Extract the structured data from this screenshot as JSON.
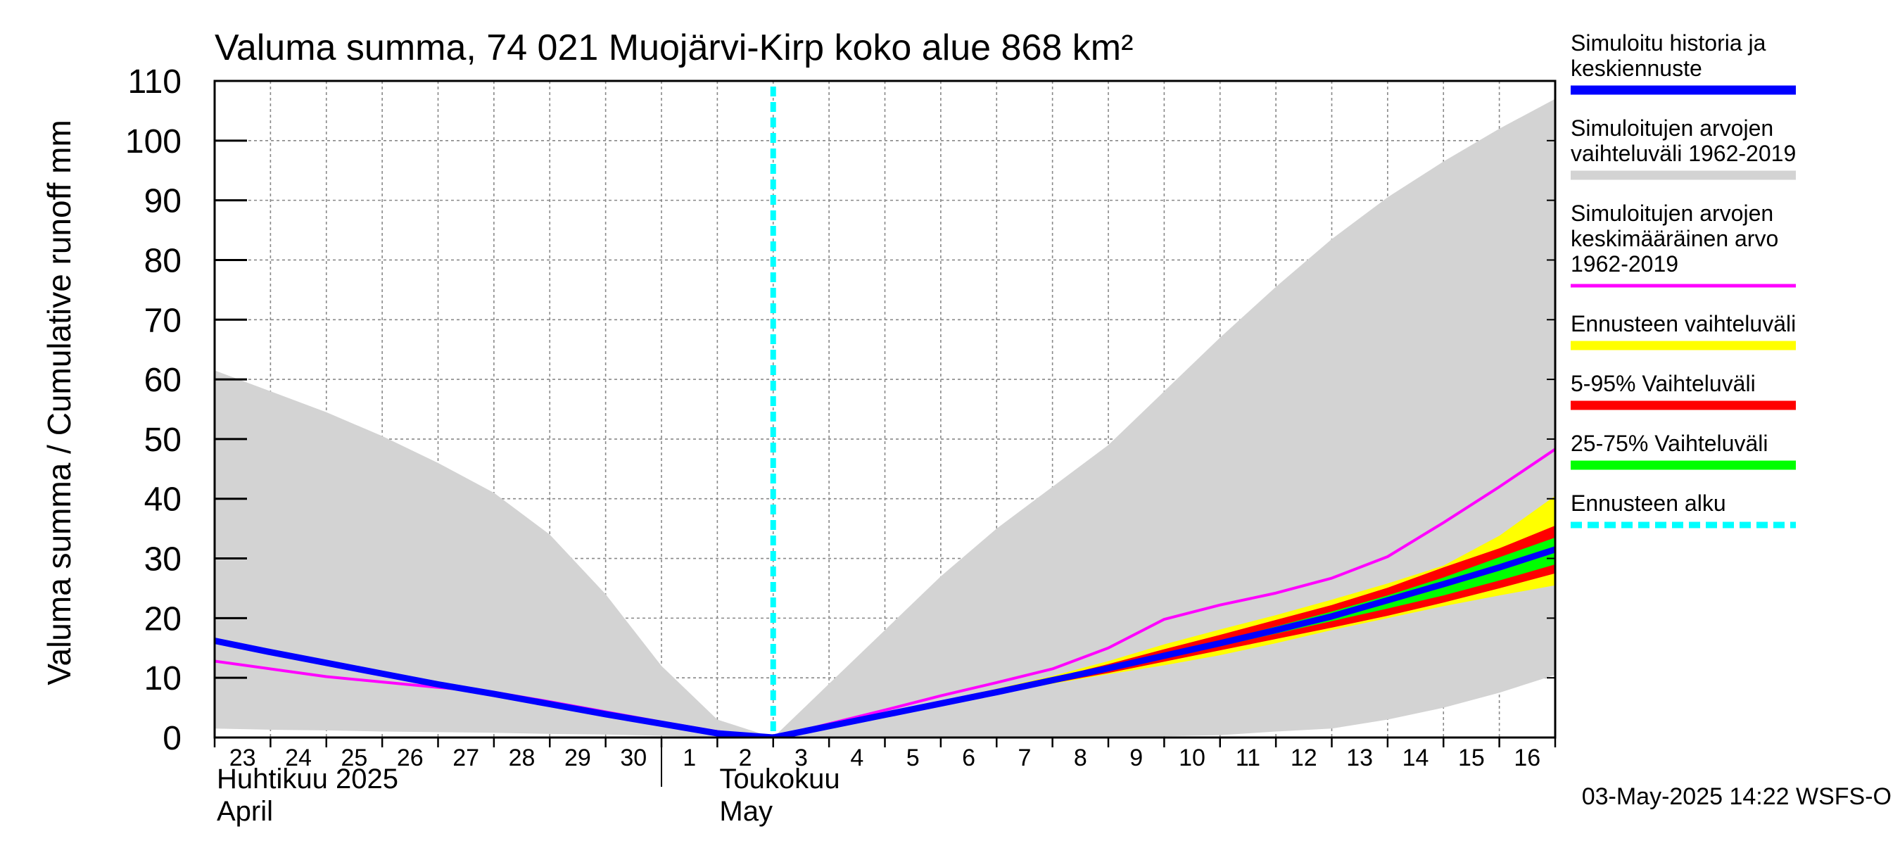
{
  "chart_data": {
    "type": "area",
    "title": "Valuma summa, 74 021 Muojärvi-Kirp koko alue 868 km²",
    "ylabel": "Valuma summa / Cumulative runoff    mm",
    "ylim": [
      0,
      110
    ],
    "yticks": [
      0,
      10,
      20,
      30,
      40,
      50,
      60,
      70,
      80,
      90,
      100,
      110
    ],
    "x_day_labels": [
      "23",
      "24",
      "25",
      "26",
      "27",
      "28",
      "29",
      "30",
      "1",
      "2",
      "3",
      "4",
      "5",
      "6",
      "7",
      "8",
      "9",
      "10",
      "11",
      "12",
      "13",
      "14",
      "15",
      "16"
    ],
    "xlim_days": [
      0,
      24
    ],
    "grid": true,
    "month_labels": [
      {
        "line1": "Huhtikuu  2025",
        "line2": "April"
      },
      {
        "line1": "Toukokuu",
        "line2": "May"
      }
    ],
    "forecast_start_day": 10,
    "footer": "03-May-2025 14:22 WSFS-O",
    "legend_position": "right",
    "legend": [
      {
        "label": "Simuloitu historia ja keskiennuste",
        "lines": [
          "Simuloitu historia ja",
          "keskiennuste"
        ],
        "color": "#0000ff"
      },
      {
        "label": "Simuloitujen arvojen vaihteluväli 1962-2019",
        "lines": [
          "Simuloitujen arvojen",
          "vaihteluväli 1962-2019"
        ],
        "color": "#d3d3d3"
      },
      {
        "label": "Simuloitujen arvojen keskimääräinen arvo 1962-2019",
        "lines": [
          "Simuloitujen arvojen",
          "keskimääräinen arvo",
          "   1962-2019"
        ],
        "color": "#ff00ff"
      },
      {
        "label": "Ennusteen vaihteluväli",
        "lines": [
          "Ennusteen vaihteluväli"
        ],
        "color": "#ffff00"
      },
      {
        "label": "5-95% Vaihteluväli",
        "lines": [
          "5-95% Vaihteluväli"
        ],
        "color": "#ff0000"
      },
      {
        "label": "25-75% Vaihteluväli",
        "lines": [
          "25-75% Vaihteluväli"
        ],
        "color": "#00ff00"
      },
      {
        "label": "Ennusteen alku",
        "lines": [
          "Ennusteen alku"
        ],
        "color": "#00ffff"
      }
    ],
    "series": [
      {
        "name": "Simuloitujen arvojen vaihteluväli 1962-2019",
        "kind": "band",
        "color": "#d3d3d3",
        "x": [
          0,
          1,
          2,
          3,
          4,
          5,
          6,
          7,
          8,
          9,
          10,
          11,
          12,
          13,
          14,
          15,
          16,
          17,
          18,
          19,
          20,
          21,
          22,
          23,
          24
        ],
        "lower": [
          1.5,
          1.3,
          1.2,
          1.0,
          0.9,
          0.8,
          0.6,
          0.5,
          0.3,
          0.1,
          0,
          0,
          0,
          0,
          0,
          0,
          0,
          0.2,
          0.4,
          1.0,
          1.5,
          3.0,
          5.0,
          7.5,
          10.5
        ],
        "upper": [
          61.5,
          58.0,
          54.5,
          50.5,
          46.0,
          41.0,
          34.0,
          24.0,
          12.0,
          3.0,
          0,
          9.0,
          18.0,
          27.0,
          35.0,
          42.0,
          49.0,
          58.0,
          67.0,
          75.5,
          83.5,
          90.5,
          96.5,
          102.0,
          107.0
        ]
      },
      {
        "name": "Ennusteen vaihteluväli",
        "kind": "band",
        "color": "#ffff00",
        "x": [
          10,
          11,
          12,
          13,
          14,
          15,
          16,
          17,
          18,
          19,
          20,
          21,
          22,
          23,
          24
        ],
        "lower": [
          0,
          1.8,
          3.6,
          5.4,
          7.3,
          9.0,
          10.6,
          12.1,
          13.8,
          15.8,
          18.0,
          20.0,
          22.0,
          23.8,
          25.5
        ],
        "upper": [
          0,
          2.0,
          4.0,
          6.1,
          8.2,
          10.3,
          12.8,
          15.6,
          18.1,
          20.5,
          23.1,
          25.8,
          28.8,
          33.8,
          40.5
        ]
      },
      {
        "name": "5-95% Vaihteluväli",
        "kind": "band",
        "color": "#ff0000",
        "x": [
          10,
          11,
          12,
          13,
          14,
          15,
          16,
          17,
          18,
          19,
          20,
          21,
          22,
          23,
          24
        ],
        "lower": [
          0,
          1.8,
          3.6,
          5.4,
          7.3,
          9.1,
          10.8,
          12.7,
          14.6,
          16.5,
          18.4,
          20.4,
          22.6,
          25.0,
          27.5
        ],
        "upper": [
          0,
          2.0,
          3.9,
          5.9,
          8.0,
          10.0,
          12.3,
          14.8,
          17.2,
          19.7,
          22.2,
          25.1,
          28.5,
          31.7,
          35.5
        ]
      },
      {
        "name": "25-75% Vaihteluväli",
        "kind": "band",
        "color": "#00ff00",
        "x": [
          10,
          11,
          12,
          13,
          14,
          15,
          16,
          17,
          18,
          19,
          20,
          21,
          22,
          23,
          24
        ],
        "lower": [
          0,
          1.9,
          3.7,
          5.6,
          7.5,
          9.4,
          11.2,
          13.2,
          15.3,
          17.4,
          19.5,
          21.6,
          23.8,
          26.3,
          29.0
        ],
        "upper": [
          0,
          1.9,
          3.8,
          5.7,
          7.7,
          9.7,
          11.7,
          13.9,
          16.2,
          18.6,
          21.1,
          23.8,
          26.8,
          30.2,
          33.5
        ]
      },
      {
        "name": "Simuloitujen arvojen keskimääräinen arvo 1962-2019",
        "kind": "line",
        "color": "#ff00ff",
        "x": [
          0,
          1,
          2,
          3,
          4,
          5,
          6,
          7,
          8,
          9,
          10,
          11,
          12,
          13,
          14,
          15,
          16,
          17,
          18,
          19,
          20,
          21,
          22,
          23,
          24
        ],
        "y": [
          12.8,
          11.5,
          10.2,
          9.3,
          8.4,
          7.6,
          6.0,
          4.3,
          2.6,
          1.0,
          0,
          2.3,
          4.6,
          7.0,
          9.2,
          11.5,
          15.0,
          19.8,
          22.2,
          24.2,
          26.7,
          30.3,
          36.0,
          42.0,
          48.3
        ]
      },
      {
        "name": "Simuloitu historia ja keskiennuste",
        "kind": "line",
        "color": "#0000ff",
        "x": [
          0,
          1,
          2,
          3,
          4,
          5,
          6,
          7,
          8,
          9,
          10,
          11,
          12,
          13,
          14,
          15,
          16,
          17,
          18,
          19,
          20,
          21,
          22,
          23,
          24
        ],
        "y": [
          16.2,
          14.3,
          12.5,
          10.7,
          8.9,
          7.3,
          5.6,
          3.9,
          2.3,
          0.7,
          0,
          1.9,
          3.8,
          5.7,
          7.6,
          9.6,
          11.6,
          13.7,
          15.8,
          18.0,
          20.3,
          23.0,
          25.7,
          28.5,
          31.5
        ]
      }
    ]
  }
}
